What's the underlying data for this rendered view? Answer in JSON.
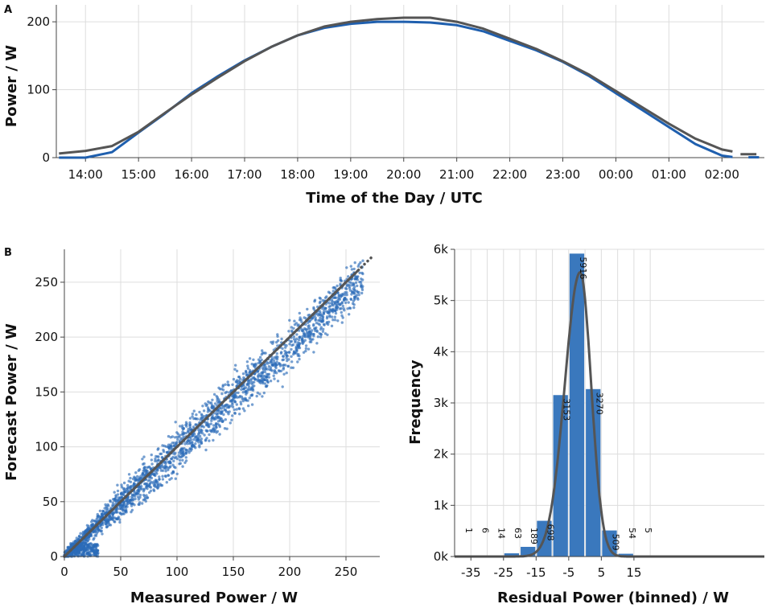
{
  "colors": {
    "measured": "#1f5fae",
    "forecast": "#555555",
    "bar": "#3a78bd",
    "scatter": "#2b6cb8",
    "fit": "#555555"
  },
  "chart_data": [
    {
      "panel": "A",
      "type": "line",
      "xlabel": "Time of the Day / UTC",
      "ylabel": "Power / W",
      "x_ticks": [
        "14:00",
        "15:00",
        "16:00",
        "17:00",
        "18:00",
        "19:00",
        "20:00",
        "21:00",
        "22:00",
        "23:00",
        "00:00",
        "01:00",
        "02:00"
      ],
      "y_ticks": [
        0,
        100,
        200
      ],
      "ylim": [
        0,
        225
      ],
      "xlim_hours": [
        13.45,
        26.8
      ],
      "series": [
        {
          "key": "measured",
          "x_hours": [
            13.5,
            14.0,
            14.5,
            15.0,
            15.5,
            16.0,
            16.5,
            17.0,
            17.5,
            18.0,
            18.5,
            19.0,
            19.5,
            20.0,
            20.5,
            21.0,
            21.5,
            22.0,
            22.5,
            23.0,
            23.5,
            24.0,
            24.5,
            25.0,
            25.5,
            26.0,
            26.2
          ],
          "y": [
            0,
            0,
            8,
            37,
            65,
            95,
            120,
            143,
            163,
            180,
            191,
            197,
            200,
            200,
            199,
            195,
            186,
            172,
            158,
            141,
            120,
            95,
            70,
            45,
            20,
            3,
            1
          ]
        },
        {
          "key": "forecast",
          "x_hours": [
            13.5,
            14.0,
            14.5,
            15.0,
            15.5,
            16.0,
            16.5,
            17.0,
            17.5,
            18.0,
            18.5,
            19.0,
            19.5,
            20.0,
            20.5,
            21.0,
            21.5,
            22.0,
            22.5,
            23.0,
            23.5,
            24.0,
            24.5,
            25.0,
            25.5,
            26.0,
            26.2
          ],
          "y": [
            6,
            10,
            17,
            38,
            66,
            93,
            118,
            142,
            163,
            180,
            193,
            200,
            204,
            206,
            206,
            200,
            190,
            175,
            160,
            142,
            122,
            98,
            74,
            50,
            28,
            12,
            9
          ]
        }
      ]
    },
    {
      "panel": "B",
      "type": "scatter",
      "xlabel": "Measured Power / W",
      "ylabel": "Forecast Power / W",
      "x_ticks": [
        0,
        50,
        100,
        150,
        200,
        250
      ],
      "y_ticks": [
        0,
        50,
        100,
        150,
        200,
        250
      ],
      "xlim": [
        0,
        280
      ],
      "ylim": [
        0,
        280
      ],
      "identity_line": [
        [
          0,
          0
        ],
        [
          275,
          275
        ]
      ],
      "point_cloud": {
        "x_range": [
          0,
          265
        ],
        "slope": 0.97,
        "spread": 8
      }
    },
    {
      "type": "bar",
      "xlabel": "Residual Power (binned) / W",
      "ylabel": "Frequency",
      "x_ticks": [
        -35,
        -25,
        -15,
        -5,
        5,
        15
      ],
      "y_ticks": [
        "0k",
        "1k",
        "2k",
        "3k",
        "4k",
        "5k",
        "6k"
      ],
      "xlim": [
        -40,
        55
      ],
      "ylim": [
        0,
        6000
      ],
      "bin_width": 5,
      "bins": [
        {
          "start": -40,
          "count": 1,
          "label": "1"
        },
        {
          "start": -35,
          "count": 6,
          "label": "6"
        },
        {
          "start": -30,
          "count": 14,
          "label": "14"
        },
        {
          "start": -25,
          "count": 63,
          "label": "63"
        },
        {
          "start": -20,
          "count": 189,
          "label": "189"
        },
        {
          "start": -15,
          "count": 698,
          "label": "698"
        },
        {
          "start": -10,
          "count": 3153,
          "label": "3153"
        },
        {
          "start": -5,
          "count": 5916,
          "label": "5916"
        },
        {
          "start": 0,
          "count": 3270,
          "label": "3270"
        },
        {
          "start": 5,
          "count": 509,
          "label": "509"
        },
        {
          "start": 10,
          "count": 54,
          "label": "54"
        },
        {
          "start": 15,
          "count": 5,
          "label": "5"
        }
      ],
      "fit_curve": {
        "type": "gaussian",
        "peak": 5550,
        "center": -1.5,
        "sigma": 4.7
      }
    }
  ]
}
